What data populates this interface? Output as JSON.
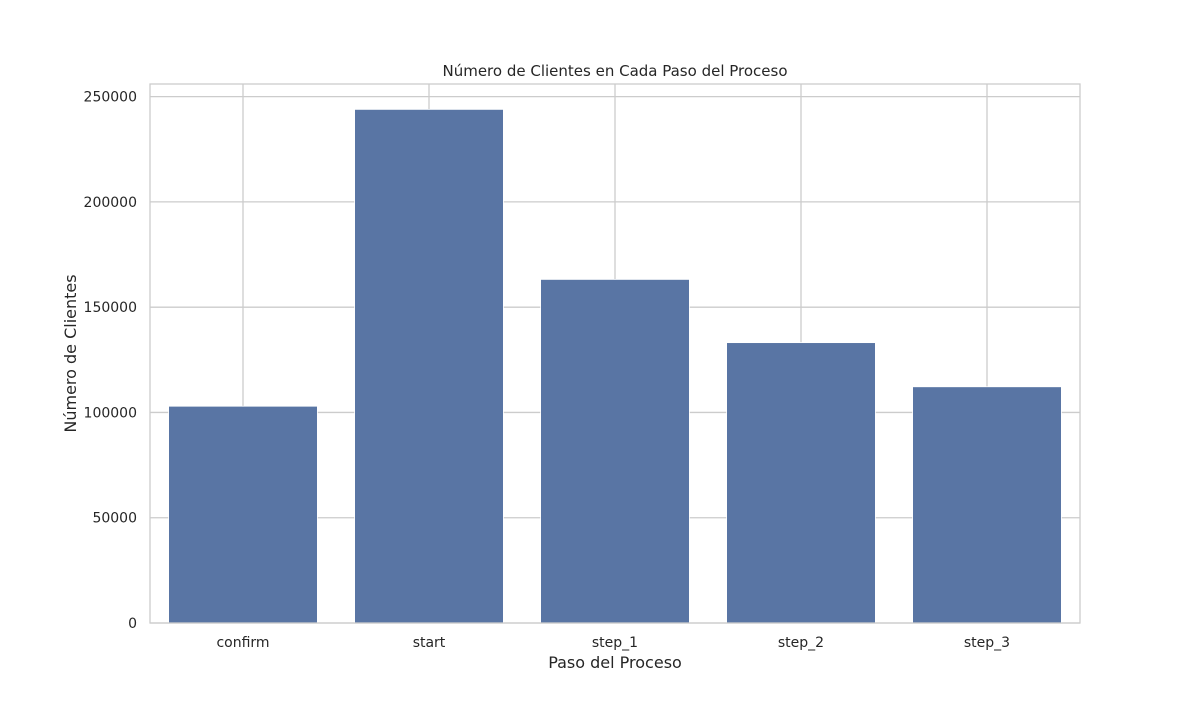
{
  "chart_data": {
    "type": "bar",
    "title": "Número de Clientes en Cada Paso del Proceso",
    "xlabel": "Paso del Proceso",
    "ylabel": "Número de Clientes",
    "categories": [
      "confirm",
      "start",
      "step_1",
      "step_2",
      "step_3"
    ],
    "values": [
      102963,
      243945,
      163193,
      133162,
      112201
    ],
    "ylim": [
      0,
      256000
    ],
    "yticks": [
      0,
      50000,
      100000,
      150000,
      200000,
      250000
    ],
    "grid": true,
    "bar_color": "#5975a4",
    "grid_color": "#cccccc"
  }
}
